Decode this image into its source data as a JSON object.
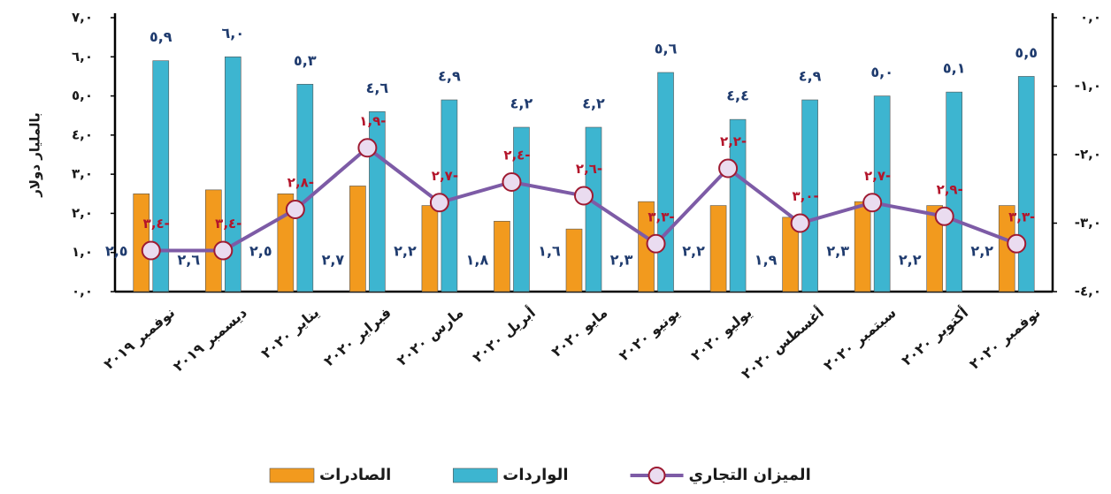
{
  "chart_data": {
    "type": "bar_line",
    "y_label": "بالمليار دولار",
    "categories": [
      "نوفمبر ٢٠١٩",
      "ديسمبر ٢٠١٩",
      "يناير ٢٠٢٠",
      "فبراير ٢٠٢٠",
      "مارس ٢٠٢٠",
      "أبريل ٢٠٢٠",
      "مايو ٢٠٢٠",
      "يونيو ٢٠٢٠",
      "يوليو ٢٠٢٠",
      "أغسطس ٢٠٢٠",
      "سبتمبر ٢٠٢٠",
      "أكتوبر ٢٠٢٠",
      "نوفمبر ٢٠٢٠"
    ],
    "series": [
      {
        "name": "الصادرات",
        "type": "bar",
        "color": "#f29a1e",
        "values": [
          2.5,
          2.6,
          2.5,
          2.7,
          2.2,
          1.8,
          1.6,
          2.3,
          2.2,
          1.9,
          2.3,
          2.2,
          2.2
        ],
        "value_labels": [
          "٢,٥",
          "٢,٦",
          "٢,٥",
          "٢,٧",
          "٢,٢",
          "١,٨",
          "١,٦",
          "٢,٣",
          "٢,٢",
          "١,٩",
          "٢,٣",
          "٢,٢",
          "٢,٢"
        ]
      },
      {
        "name": "الواردات",
        "type": "bar",
        "color": "#3db5d0",
        "values": [
          5.9,
          6.0,
          5.3,
          4.6,
          4.9,
          4.2,
          4.2,
          5.6,
          4.4,
          4.9,
          5.0,
          5.1,
          5.5
        ],
        "value_labels": [
          "٥,٩",
          "٦,٠",
          "٥,٣",
          "٤,٦",
          "٤,٩",
          "٤,٢",
          "٤,٢",
          "٥,٦",
          "٤,٤",
          "٤,٩",
          "٥,٠",
          "٥,١",
          "٥,٥"
        ]
      },
      {
        "name": "الميزان التجاري",
        "type": "line",
        "axis": "y2",
        "color": "#7d5ba6",
        "values": [
          -3.4,
          -3.4,
          -2.8,
          -1.9,
          -2.7,
          -2.4,
          -2.6,
          -3.3,
          -2.2,
          -3.0,
          -2.7,
          -2.9,
          -3.3
        ],
        "value_labels": [
          "٣,٤-",
          "٣,٤-",
          "٢,٨-",
          "١,٩-",
          "٢,٧-",
          "٢,٤-",
          "٢,٦-",
          "٣,٣-",
          "٢,٢-",
          "٣,٠-",
          "٢,٧-",
          "٢,٩-",
          "٣,٣-"
        ]
      }
    ],
    "ylim": [
      0,
      7
    ],
    "yticks": [
      {
        "value": 0,
        "label": "٠,٠"
      },
      {
        "value": 1,
        "label": "١,٠"
      },
      {
        "value": 2,
        "label": "٢,٠"
      },
      {
        "value": 3,
        "label": "٣,٠"
      },
      {
        "value": 4,
        "label": "٤,٠"
      },
      {
        "value": 5,
        "label": "٥,٠"
      },
      {
        "value": 6,
        "label": "٦,٠"
      },
      {
        "value": 7,
        "label": "٧,٠"
      }
    ],
    "y2lim": [
      -4,
      0
    ],
    "y2ticks": [
      {
        "value": 0,
        "label": "٠,٠"
      },
      {
        "value": -1,
        "label": "-١,٠"
      },
      {
        "value": -2,
        "label": "-٢,٠"
      },
      {
        "value": -3,
        "label": "-٣,٠"
      },
      {
        "value": -4,
        "label": "-٤,٠"
      }
    ]
  }
}
